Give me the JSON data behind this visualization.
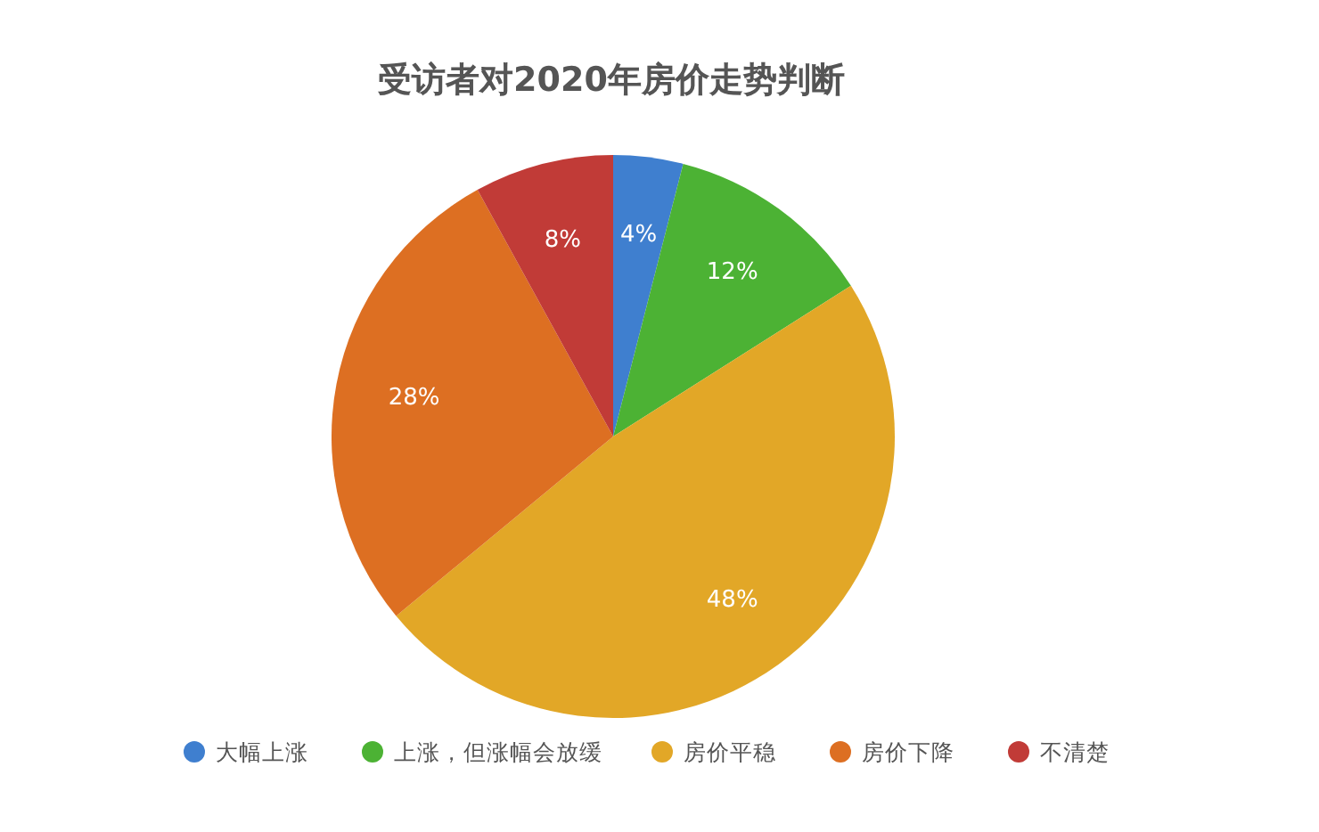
{
  "chart_data": {
    "type": "pie",
    "title": "受访者对2020年房价走势判断",
    "categories": [
      "大幅上涨",
      "上涨，但涨幅会放缓",
      "房价平稳",
      "房价下降",
      "不清楚"
    ],
    "values": [
      4,
      12,
      48,
      28,
      8
    ],
    "colors": [
      "#3f7fcf",
      "#4cb234",
      "#e2a727",
      "#dd6f22",
      "#c13b37"
    ],
    "value_labels": [
      "4%",
      "12%",
      "48%",
      "28%",
      "8%"
    ],
    "legend": "bottom"
  }
}
